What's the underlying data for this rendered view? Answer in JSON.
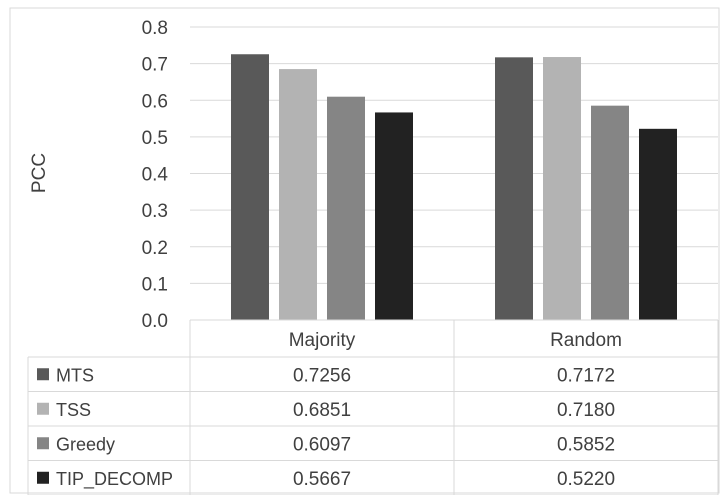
{
  "chart_data": {
    "type": "bar",
    "ylabel": "PCC",
    "ylim": [
      0,
      0.8
    ],
    "yticks": [
      "0.0",
      "0.1",
      "0.2",
      "0.3",
      "0.4",
      "0.5",
      "0.6",
      "0.7",
      "0.8"
    ],
    "categories": [
      "Majority",
      "Random"
    ],
    "grid": true,
    "legend": "data-table-below",
    "series": [
      {
        "name": "MTS",
        "values": [
          0.7256,
          0.7172
        ],
        "labels": [
          "0.7256",
          "0.7172"
        ],
        "color": "#595959"
      },
      {
        "name": "TSS",
        "values": [
          0.6851,
          0.718
        ],
        "labels": [
          "0.6851",
          "0.7180"
        ],
        "color": "#b3b3b3"
      },
      {
        "name": "Greedy",
        "values": [
          0.6097,
          0.5852
        ],
        "labels": [
          "0.6097",
          "0.5852"
        ],
        "color": "#858585"
      },
      {
        "name": "TIP_DECOMP",
        "values": [
          0.5667,
          0.522
        ],
        "labels": [
          "0.5667",
          "0.5220"
        ],
        "color": "#222222"
      }
    ]
  }
}
